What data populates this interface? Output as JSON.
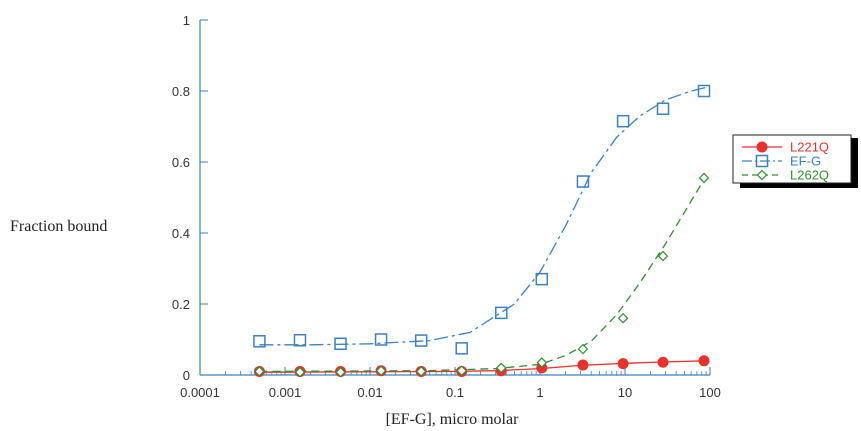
{
  "chart_data": {
    "type": "scatter",
    "xlabel": "[EF-G], micro molar",
    "ylabel": "Fraction bound",
    "x_scale": "log",
    "xlim": [
      0.0001,
      100
    ],
    "ylim": [
      0,
      1
    ],
    "x_ticks": [
      0.0001,
      0.001,
      0.01,
      0.1,
      1,
      10,
      100
    ],
    "x_tick_labels": [
      "0.0001",
      "0.001",
      "0.01",
      "0.1",
      "1",
      "10",
      "100"
    ],
    "y_ticks": [
      0,
      0.2,
      0.4,
      0.6,
      0.8,
      1
    ],
    "y_tick_labels": [
      "0",
      "0.2",
      "0.4",
      "0.6",
      "0.8",
      "1"
    ],
    "grid": false,
    "legend_position": "right",
    "series": [
      {
        "name": "L221Q",
        "color": "#e8322b",
        "marker": "filled-circle",
        "line": "solid",
        "x": [
          0.0005,
          0.0015,
          0.0045,
          0.0135,
          0.04,
          0.12,
          0.35,
          1.05,
          3.2,
          9.5,
          28,
          85
        ],
        "y": [
          0.01,
          0.01,
          0.01,
          0.012,
          0.01,
          0.01,
          0.012,
          0.02,
          0.028,
          0.032,
          0.036,
          0.04
        ],
        "fit": [
          [
            0.0005,
            0.008
          ],
          [
            0.01,
            0.009
          ],
          [
            0.1,
            0.01
          ],
          [
            0.3,
            0.012
          ],
          [
            1,
            0.018
          ],
          [
            3,
            0.027
          ],
          [
            10,
            0.033
          ],
          [
            30,
            0.037
          ],
          [
            90,
            0.04
          ]
        ]
      },
      {
        "name": "EF-G",
        "color": "#3a82c0",
        "marker": "open-square",
        "line": "dash-dot",
        "x": [
          0.0005,
          0.0015,
          0.0045,
          0.0135,
          0.04,
          0.12,
          0.35,
          1.05,
          3.2,
          9.5,
          28,
          85
        ],
        "y": [
          0.095,
          0.098,
          0.088,
          0.1,
          0.097,
          0.075,
          0.175,
          0.27,
          0.545,
          0.715,
          0.75,
          0.8
        ],
        "fit": [
          [
            0.0005,
            0.085
          ],
          [
            0.002,
            0.085
          ],
          [
            0.01,
            0.088
          ],
          [
            0.05,
            0.097
          ],
          [
            0.15,
            0.12
          ],
          [
            0.5,
            0.2
          ],
          [
            1,
            0.29
          ],
          [
            2,
            0.42
          ],
          [
            4,
            0.57
          ],
          [
            8,
            0.67
          ],
          [
            15,
            0.73
          ],
          [
            30,
            0.775
          ],
          [
            60,
            0.8
          ],
          [
            90,
            0.81
          ]
        ]
      },
      {
        "name": "L262Q",
        "color": "#2f8f2f",
        "marker": "open-diamond",
        "line": "dashed",
        "x": [
          0.0005,
          0.0015,
          0.0045,
          0.0135,
          0.04,
          0.12,
          0.35,
          1.05,
          3.2,
          9.5,
          28,
          85
        ],
        "y": [
          0.01,
          0.008,
          0.008,
          0.012,
          0.01,
          0.012,
          0.02,
          0.035,
          0.073,
          0.16,
          0.335,
          0.555
        ],
        "fit": [
          [
            0.0005,
            0.01
          ],
          [
            0.05,
            0.012
          ],
          [
            0.3,
            0.018
          ],
          [
            1,
            0.03
          ],
          [
            2,
            0.055
          ],
          [
            4,
            0.095
          ],
          [
            8,
            0.17
          ],
          [
            15,
            0.26
          ],
          [
            30,
            0.37
          ],
          [
            60,
            0.49
          ],
          [
            90,
            0.56
          ]
        ]
      }
    ]
  }
}
